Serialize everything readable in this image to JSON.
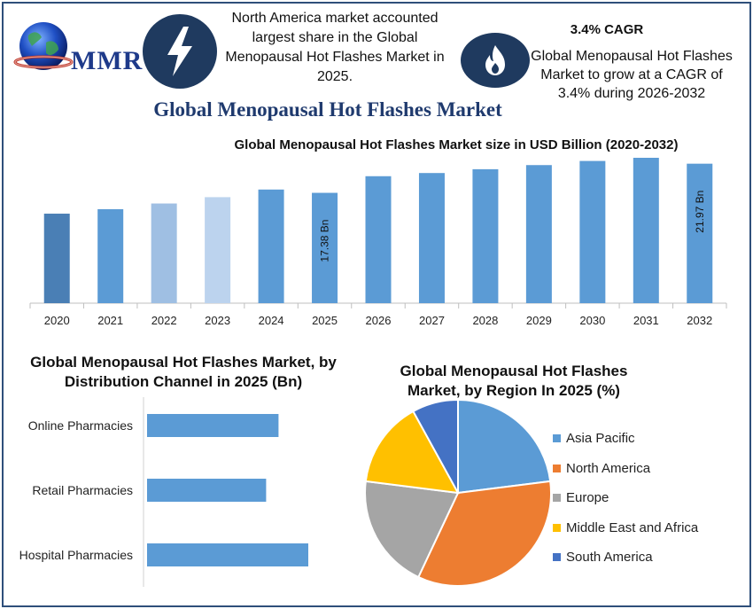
{
  "header": {
    "logo_text": "MMR",
    "stat1_text": "North America market accounted largest share in the Global Menopausal Hot Flashes Market in 2025.",
    "cagr_title": "3.4% CAGR",
    "stat2_text": "Global Menopausal Hot Flashes Market to grow at a CAGR of 3.4% during 2026-2032",
    "main_title": "Global Menopausal Hot Flashes Market",
    "icons": [
      "lightning-bolt-icon",
      "flame-icon",
      "globe-logo-icon"
    ]
  },
  "chart_data": [
    {
      "type": "bar",
      "title": "Global Menopausal Hot Flashes Market size in USD Billion (2020-2032)",
      "categories": [
        "2020",
        "2021",
        "2022",
        "2023",
        "2024",
        "2025",
        "2026",
        "2027",
        "2028",
        "2029",
        "2030",
        "2031",
        "2032"
      ],
      "values": [
        14.1,
        14.8,
        15.7,
        16.7,
        17.9,
        17.38,
        20.0,
        20.5,
        21.1,
        21.75,
        22.4,
        22.9,
        21.97
      ],
      "data_labels": {
        "2025": "17.38 Bn",
        "2032": "21.97 Bn"
      },
      "colors": [
        "#4f81bd",
        "#5b9bd5",
        "#5b9bd5",
        "#5b9bd5",
        "#5b9bd5",
        "#5b9bd5",
        "#5b9bd5",
        "#5b9bd5",
        "#5b9bd5",
        "#5b9bd5",
        "#5b9bd5",
        "#5b9bd5",
        "#5b9bd5"
      ],
      "bar_colors_by_category": {
        "2020": "#4a7fb5",
        "2022": "#9fbfe3",
        "2023": "#bcd3ee"
      }
    },
    {
      "type": "bar",
      "orientation": "horizontal",
      "title": "Global Menopausal Hot Flashes Market, by Distribution Channel  in 2025 (Bn)",
      "categories": [
        "Online Pharmacies",
        "Retail Pharmacies",
        "Hospital Pharmacies"
      ],
      "values": [
        5.3,
        4.8,
        6.5
      ],
      "color": "#5b9bd5"
    },
    {
      "type": "pie",
      "title": "Global Menopausal Hot Flashes Market, by Region In 2025 (%)",
      "labels": [
        "Asia Pacific",
        "North America",
        "Europe",
        "Middle East and Africa",
        "South America"
      ],
      "values": [
        23,
        34,
        20,
        15,
        8
      ],
      "colors": [
        "#5b9bd5",
        "#ed7d31",
        "#a5a5a5",
        "#ffc000",
        "#4472c4"
      ],
      "legend": "right"
    }
  ]
}
